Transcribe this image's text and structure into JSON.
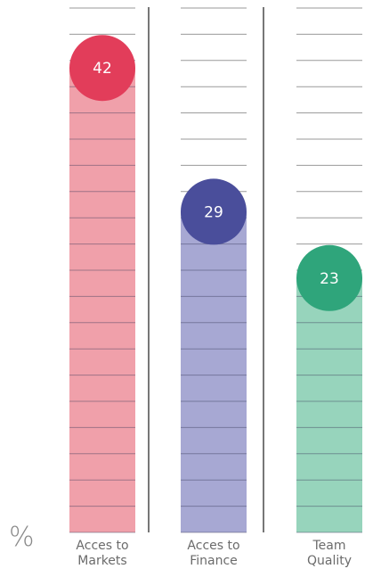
{
  "chart_data": {
    "type": "bar",
    "categories": [
      "Acces to Markets",
      "Acces to Finance",
      "Team Quality"
    ],
    "values": [
      42,
      29,
      23
    ],
    "colors": [
      "#f0a0aa",
      "#a7a8d3",
      "#97d4bc"
    ],
    "marker_colors": [
      "#e23d5a",
      "#4a4e9b",
      "#2fa57b"
    ],
    "unit": "%"
  }
}
